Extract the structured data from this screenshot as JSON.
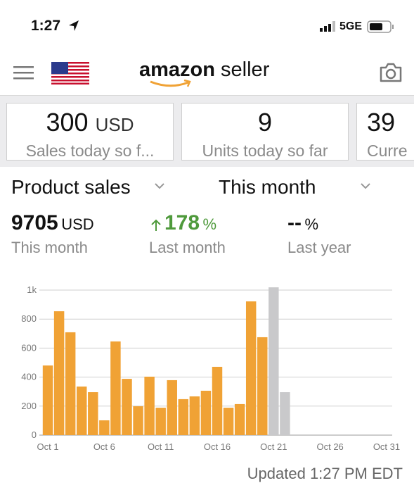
{
  "status_bar": {
    "time": "1:27",
    "network": "5GE"
  },
  "header": {
    "logo_brand": "amazon",
    "logo_product": "seller"
  },
  "cards": [
    {
      "value": "300",
      "unit": "USD",
      "label": "Sales today so f..."
    },
    {
      "value": "9",
      "label": "Units today so far"
    },
    {
      "value": "39",
      "label": "Curre"
    }
  ],
  "filters": {
    "metric": "Product sales",
    "period": "This month"
  },
  "stats": [
    {
      "value": "9705",
      "unit": "USD",
      "label": "This month"
    },
    {
      "value": "178",
      "unit": "%",
      "label": "Last month"
    },
    {
      "value": "--",
      "unit": "%",
      "label": "Last year"
    }
  ],
  "chart_data": {
    "type": "bar",
    "categories": [
      "Oct 1",
      null,
      null,
      null,
      null,
      "Oct 6",
      null,
      null,
      null,
      null,
      "Oct 11",
      null,
      null,
      null,
      null,
      "Oct 16",
      null,
      null,
      null,
      null,
      "Oct 21",
      null,
      null,
      null,
      null,
      "Oct 26",
      null,
      null,
      null,
      null,
      "Oct 31"
    ],
    "series": [
      {
        "color": "#f0a235",
        "values": [
          480,
          854,
          709,
          335,
          296,
          102,
          646,
          388,
          199,
          403,
          189,
          379,
          248,
          267,
          306,
          471,
          189,
          214,
          922,
          675,
          null,
          null,
          null,
          null,
          null,
          null,
          null,
          null,
          null,
          null,
          null
        ]
      },
      {
        "color": "#c9c9cb",
        "values": [
          null,
          null,
          null,
          null,
          null,
          null,
          null,
          null,
          null,
          null,
          null,
          null,
          null,
          null,
          null,
          null,
          null,
          null,
          null,
          null,
          1019,
          296,
          null,
          null,
          null,
          null,
          null,
          null,
          null,
          null,
          null
        ]
      }
    ],
    "ylim": [
      0,
      1030
    ],
    "yticks": [
      0,
      200,
      400,
      600,
      800,
      {
        "value": 1000,
        "label": "1k"
      }
    ],
    "grid": true
  },
  "footer": {
    "updated": "Updated 1:27 PM EDT"
  }
}
